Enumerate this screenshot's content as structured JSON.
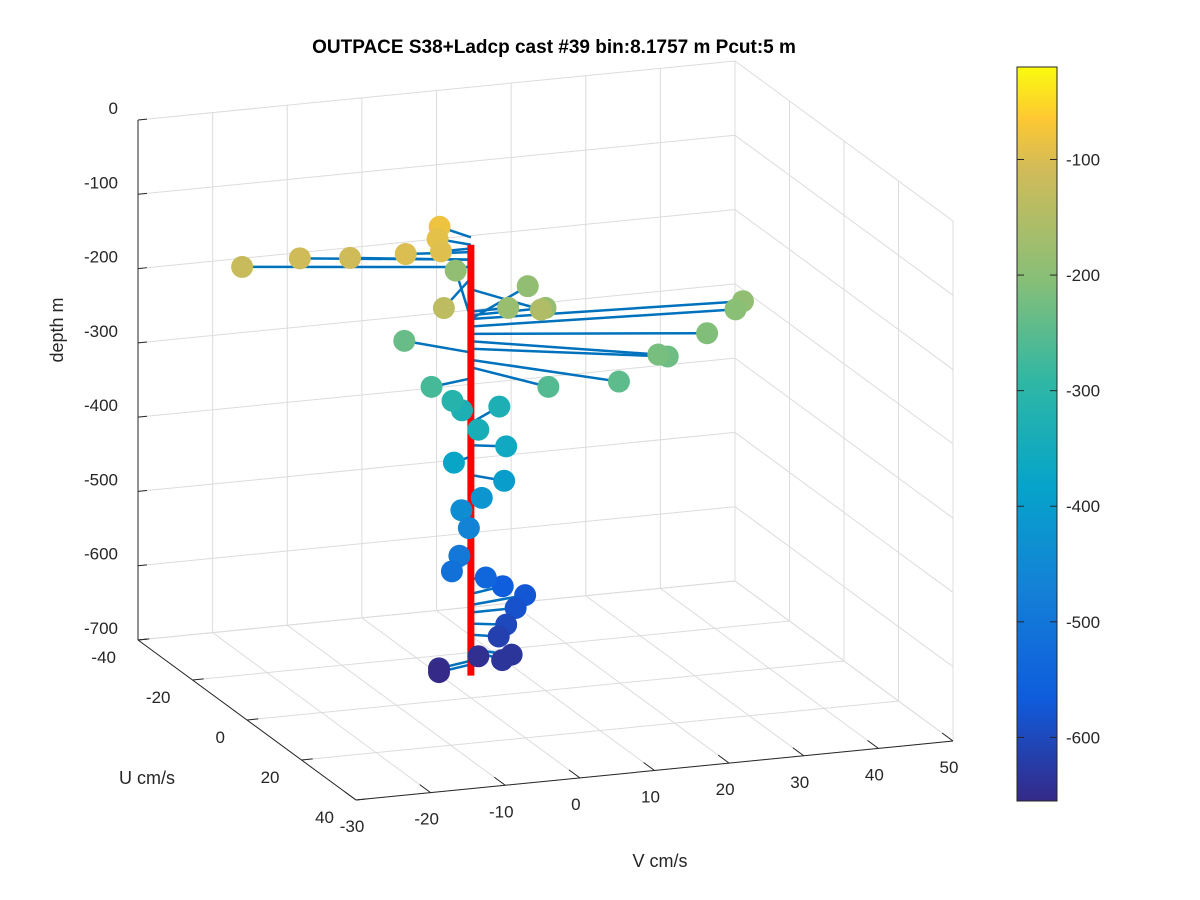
{
  "chart_data": {
    "type": "scatter",
    "subtype": "3d-stem-quiver",
    "title": "OUTPACE S38+Ladcp cast #39 bin:8.1757 m  Pcut:5 m",
    "xlabel": "V cm/s",
    "ylabel": "U cm/s",
    "zlabel": "depth m",
    "xlim": [
      -30,
      50
    ],
    "ylim": [
      -40,
      40
    ],
    "zlim": [
      -700,
      0
    ],
    "x_ticks": [
      "-30",
      "-20",
      "-10",
      "0",
      "10",
      "20",
      "30",
      "40",
      "50"
    ],
    "y_ticks": [
      "-40",
      "-20",
      "0",
      "20",
      "40"
    ],
    "z_ticks": [
      "0",
      "-100",
      "-200",
      "-300",
      "-400",
      "-500",
      "-600",
      "-700"
    ],
    "colorbar": {
      "colormap": "parula",
      "range": [
        -655,
        -20
      ],
      "ticks": [
        "-100",
        "-200",
        "-300",
        "-400",
        "-500",
        "-600"
      ]
    },
    "grid": true,
    "legend": "none",
    "colors": {
      "stem": "#0072BD",
      "reference_line": "#FF0000"
    },
    "points": [
      {
        "v": -2,
        "u": -6,
        "z": -80
      },
      {
        "v": -3,
        "u": -4,
        "z": -90
      },
      {
        "v": -4,
        "u": 0,
        "z": -95
      },
      {
        "v": -8,
        "u": -2,
        "z": -100
      },
      {
        "v": -14,
        "u": -6,
        "z": -110
      },
      {
        "v": -20,
        "u": -8,
        "z": -110
      },
      {
        "v": -27,
        "u": -10,
        "z": -120
      },
      {
        "v": -8,
        "u": 12,
        "z": -135
      },
      {
        "v": 5,
        "u": 12,
        "z": -150
      },
      {
        "v": 12,
        "u": -12,
        "z": -190
      },
      {
        "v": 6,
        "u": -22,
        "z": -190
      },
      {
        "v": 5,
        "u": 0,
        "z": -180
      },
      {
        "v": 10,
        "u": 0,
        "z": -185
      },
      {
        "v": 35,
        "u": 4,
        "z": -190
      },
      {
        "v": 34,
        "u": 4,
        "z": -200
      },
      {
        "v": 28,
        "u": 10,
        "z": -210
      },
      {
        "v": 20,
        "u": 14,
        "z": -220
      },
      {
        "v": 22,
        "u": 12,
        "z": -230
      },
      {
        "v": 14,
        "u": 16,
        "z": -245
      },
      {
        "v": 6,
        "u": 12,
        "z": -255
      },
      {
        "v": -6,
        "u": -8,
        "z": -235
      },
      {
        "v": -6,
        "u": 2,
        "z": -270
      },
      {
        "v": -1,
        "u": -4,
        "z": -310
      },
      {
        "v": 6,
        "u": -6,
        "z": -330
      },
      {
        "v": 1,
        "u": -6,
        "z": -330
      },
      {
        "v": 1,
        "u": 0,
        "z": -340
      },
      {
        "v": 4,
        "u": 2,
        "z": -360
      },
      {
        "v": -3,
        "u": 2,
        "z": -375
      },
      {
        "v": 3,
        "u": 4,
        "z": -400
      },
      {
        "v": 0,
        "u": 4,
        "z": -420
      },
      {
        "v": -2,
        "u": 2,
        "z": -440
      },
      {
        "v": -1,
        "u": 2,
        "z": -465
      },
      {
        "v": -3,
        "u": 4,
        "z": -495
      },
      {
        "v": -4,
        "u": 4,
        "z": -515
      },
      {
        "v": 2,
        "u": 0,
        "z": -540
      },
      {
        "v": 5,
        "u": -2,
        "z": -560
      },
      {
        "v": 8,
        "u": -2,
        "z": -575
      },
      {
        "v": 6,
        "u": 0,
        "z": -585
      },
      {
        "v": 4,
        "u": 2,
        "z": -600
      },
      {
        "v": 3,
        "u": 2,
        "z": -615
      },
      {
        "v": 2,
        "u": 6,
        "z": -635
      },
      {
        "v": 4,
        "u": 4,
        "z": -635
      },
      {
        "v": 1,
        "u": 0,
        "z": -645
      },
      {
        "v": -5,
        "u": 2,
        "z": -650
      },
      {
        "v": -5,
        "u": 2,
        "z": -655
      }
    ],
    "reference_line": {
      "v": 0,
      "u": 0,
      "z": [
        -670,
        -90
      ]
    }
  }
}
